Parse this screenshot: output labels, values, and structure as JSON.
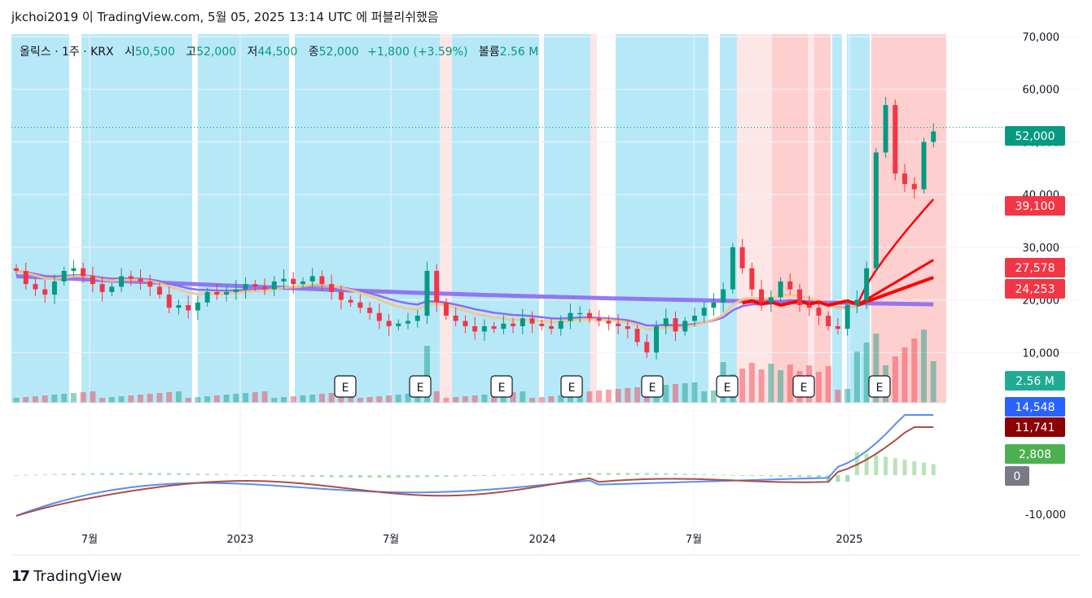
{
  "header": {
    "text": "jkchoi2019 이 TradingView.com, 5월 05, 2025 13:14 UTC 에 퍼블리쉬했음"
  },
  "legend": {
    "symbol": "올릭스 · 1주 · KRX",
    "open_label": "시",
    "open": "50,500",
    "high_label": "고",
    "high": "52,000",
    "low_label": "저",
    "low": "44,500",
    "close_label": "종",
    "close": "52,000",
    "change": "+1,800 (+3.59%)",
    "volume_label": "볼륨",
    "volume": "2.56 M"
  },
  "footer": {
    "brand": "TradingView",
    "logo": "17"
  },
  "colors": {
    "up": "#089981",
    "down": "#f23645",
    "ma_purple": "#8c6cf0",
    "ma_orange": "#f5c587",
    "ma_red": "#ff0000",
    "bg_blue": "#b3e7f8",
    "bg_pink": "#fecaca",
    "macd": "#5b8def",
    "signal": "#a8504a",
    "hist_up": "#a6dca9"
  },
  "chart_data": [
    {
      "type": "candlestick",
      "title": "올릭스 · 1주 · KRX",
      "y_axis": {
        "min": 0,
        "max": 70000,
        "ticks": [
          "10,000",
          "20,000",
          "30,000",
          "40,000",
          "50,000",
          "60,000",
          "70,000"
        ]
      },
      "x_ticks": [
        "7월",
        "2023",
        "7월",
        "2024",
        "7월",
        "2025"
      ],
      "last_price": "52,000",
      "price_labels": [
        "39,100",
        "27,578",
        "24,253"
      ],
      "volume_label": "2.56 M",
      "earnings_label": "E",
      "earnings_count": 8,
      "series": [
        {
          "name": "weekly",
          "kind": "ohlc",
          "close_path": [
            25500,
            23000,
            22000,
            21000,
            23500,
            25500,
            26000,
            24500,
            23000,
            21500,
            22500,
            24500,
            24000,
            23500,
            22500,
            21000,
            18500,
            19000,
            18000,
            19500,
            21500,
            21000,
            21500,
            22000,
            23000,
            22500,
            22000,
            23500,
            24000,
            23000,
            23500,
            24500,
            23000,
            21500,
            20000,
            19500,
            18500,
            17500,
            16000,
            15000,
            15500,
            16000,
            17000,
            25500,
            19500,
            17000,
            16000,
            15000,
            14000,
            15000,
            14500,
            15500,
            15000,
            16500,
            15500,
            15000,
            14500,
            16000,
            17500,
            17500,
            16500,
            16000,
            15500,
            15000,
            14500,
            12000,
            10000,
            15000,
            16500,
            14000,
            16000,
            17000,
            18500,
            19500,
            22000,
            30000,
            26000,
            22000,
            19500,
            20500,
            23500,
            22000,
            19000,
            18500,
            17000,
            15000,
            14500,
            19000,
            20000,
            26000,
            48000,
            57000,
            44000,
            42000,
            41000,
            50000,
            52000
          ]
        },
        {
          "name": "MA purple long",
          "values_start": 24500,
          "values_end": 19100
        },
        {
          "name": "MA red",
          "values": [
            "39,100",
            "27,578",
            "24,253"
          ]
        }
      ]
    },
    {
      "type": "macd",
      "y_axis": {
        "ticks": [
          "0",
          "-10,000"
        ]
      },
      "labels": {
        "macd": "14,548",
        "signal": "11,741",
        "histogram": "2,808",
        "zero": "0"
      }
    }
  ]
}
